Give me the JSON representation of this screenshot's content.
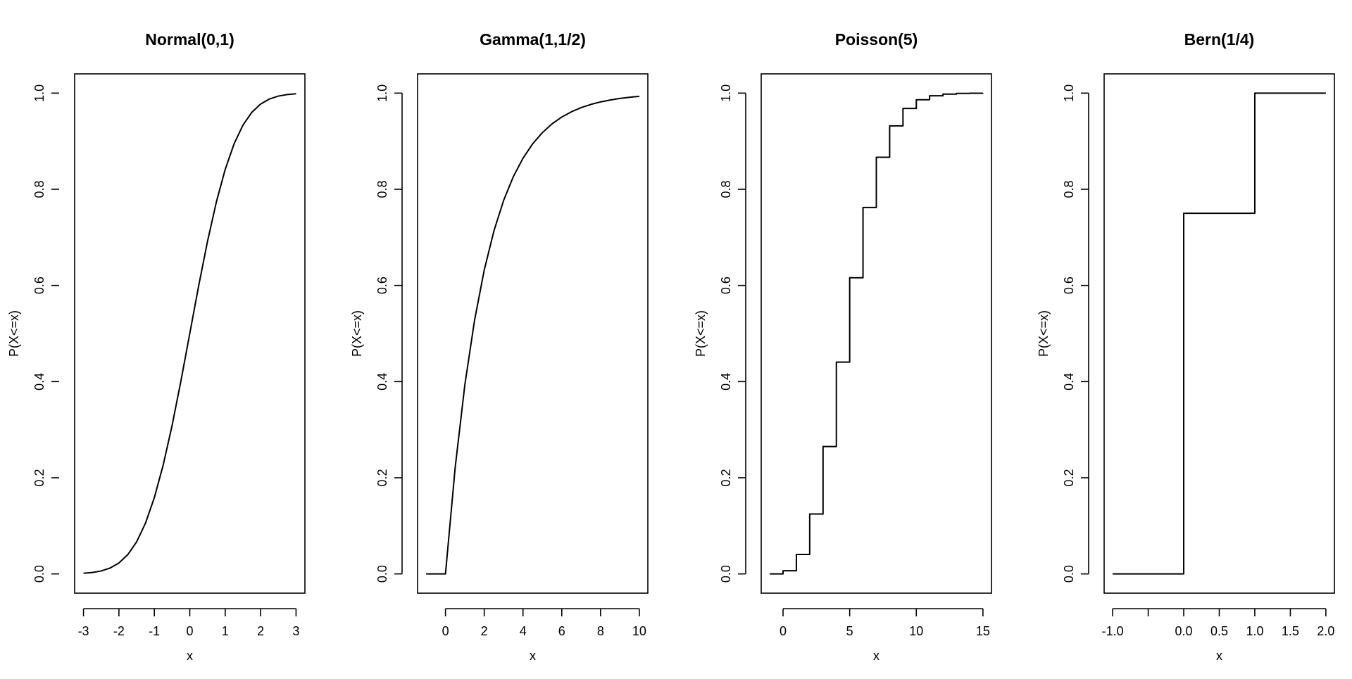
{
  "chart_data": [
    {
      "type": "line",
      "title": "Normal(0,1)",
      "xlabel": "x",
      "ylabel": "P(X<=x)",
      "xlim": [
        -3.25,
        3.25
      ],
      "ylim": [
        -0.04,
        1.04
      ],
      "x_ticks": [
        -3,
        -2,
        -1,
        0,
        1,
        2,
        3
      ],
      "x_tick_labels": [
        "-3",
        "-2",
        "-1",
        "0",
        "1",
        "2",
        "3"
      ],
      "y_ticks": [
        0,
        0.2,
        0.4,
        0.6,
        0.8,
        1
      ],
      "y_tick_labels": [
        "0.0",
        "0.2",
        "0.4",
        "0.6",
        "0.8",
        "1.0"
      ],
      "grid": false,
      "x": [
        -3,
        -2.75,
        -2.5,
        -2.25,
        -2,
        -1.75,
        -1.5,
        -1.25,
        -1,
        -0.75,
        -0.5,
        -0.25,
        0,
        0.25,
        0.5,
        0.75,
        1,
        1.25,
        1.5,
        1.75,
        2,
        2.25,
        2.5,
        2.75,
        3
      ],
      "y": [
        0.0013,
        0.003,
        0.0062,
        0.0122,
        0.0228,
        0.0401,
        0.0668,
        0.1056,
        0.1587,
        0.2266,
        0.3085,
        0.4013,
        0.5,
        0.5987,
        0.6915,
        0.7734,
        0.8413,
        0.8944,
        0.9332,
        0.9599,
        0.9772,
        0.9878,
        0.9938,
        0.997,
        0.9987
      ]
    },
    {
      "type": "line",
      "title": "Gamma(1,1/2)",
      "xlabel": "x",
      "ylabel": "P(X<=x)",
      "xlim": [
        -1.44,
        10.44
      ],
      "ylim": [
        -0.04,
        1.04
      ],
      "x_ticks": [
        0,
        2,
        4,
        6,
        8,
        10
      ],
      "x_tick_labels": [
        "0",
        "2",
        "4",
        "6",
        "8",
        "10"
      ],
      "y_ticks": [
        0,
        0.2,
        0.4,
        0.6,
        0.8,
        1
      ],
      "y_tick_labels": [
        "0.0",
        "0.2",
        "0.4",
        "0.6",
        "0.8",
        "1.0"
      ],
      "grid": false,
      "x": [
        -1,
        0,
        0.5,
        1,
        1.5,
        2,
        2.5,
        3,
        3.5,
        4,
        4.5,
        5,
        5.5,
        6,
        6.5,
        7,
        7.5,
        8,
        8.5,
        9,
        9.5,
        10
      ],
      "y": [
        0,
        0,
        0.2212,
        0.3935,
        0.5276,
        0.6321,
        0.7135,
        0.7769,
        0.8262,
        0.8647,
        0.8946,
        0.9179,
        0.9361,
        0.9502,
        0.9612,
        0.9698,
        0.9765,
        0.9817,
        0.9857,
        0.9889,
        0.9913,
        0.9933
      ]
    },
    {
      "type": "line",
      "title": "Poisson(5)",
      "xlabel": "x",
      "ylabel": "P(X<=x)",
      "xlim": [
        -1.64,
        15.64
      ],
      "ylim": [
        -0.04,
        1.04
      ],
      "x_ticks": [
        0,
        5,
        10,
        15
      ],
      "x_tick_labels": [
        "0",
        "5",
        "10",
        "15"
      ],
      "y_ticks": [
        0,
        0.2,
        0.4,
        0.6,
        0.8,
        1
      ],
      "y_tick_labels": [
        "0.0",
        "0.2",
        "0.4",
        "0.6",
        "0.8",
        "1.0"
      ],
      "grid": false,
      "step": true,
      "x": [
        -1,
        0,
        1,
        2,
        3,
        4,
        5,
        6,
        7,
        8,
        9,
        10,
        11,
        12,
        13,
        14,
        15
      ],
      "y": [
        0,
        0.0067,
        0.0404,
        0.1247,
        0.265,
        0.4405,
        0.616,
        0.7622,
        0.8666,
        0.9319,
        0.9682,
        0.9863,
        0.9945,
        0.998,
        0.9993,
        0.9998,
        0.9999
      ]
    },
    {
      "type": "line",
      "title": "Bern(1/4)",
      "xlabel": "x",
      "ylabel": "P(X<=x)",
      "xlim": [
        -1.12,
        2.12
      ],
      "ylim": [
        -0.04,
        1.04
      ],
      "x_ticks": [
        -1,
        -0.5,
        0,
        0.5,
        1,
        1.5,
        2
      ],
      "x_tick_labels": [
        "-1.0",
        "",
        "0.0",
        "0.5",
        "1.0",
        "1.5",
        "2.0"
      ],
      "y_ticks": [
        0,
        0.2,
        0.4,
        0.6,
        0.8,
        1
      ],
      "y_tick_labels": [
        "0.0",
        "0.2",
        "0.4",
        "0.6",
        "0.8",
        "1.0"
      ],
      "grid": false,
      "step": true,
      "x": [
        -1,
        0,
        1,
        2
      ],
      "y": [
        0,
        0.75,
        1,
        1
      ]
    }
  ]
}
